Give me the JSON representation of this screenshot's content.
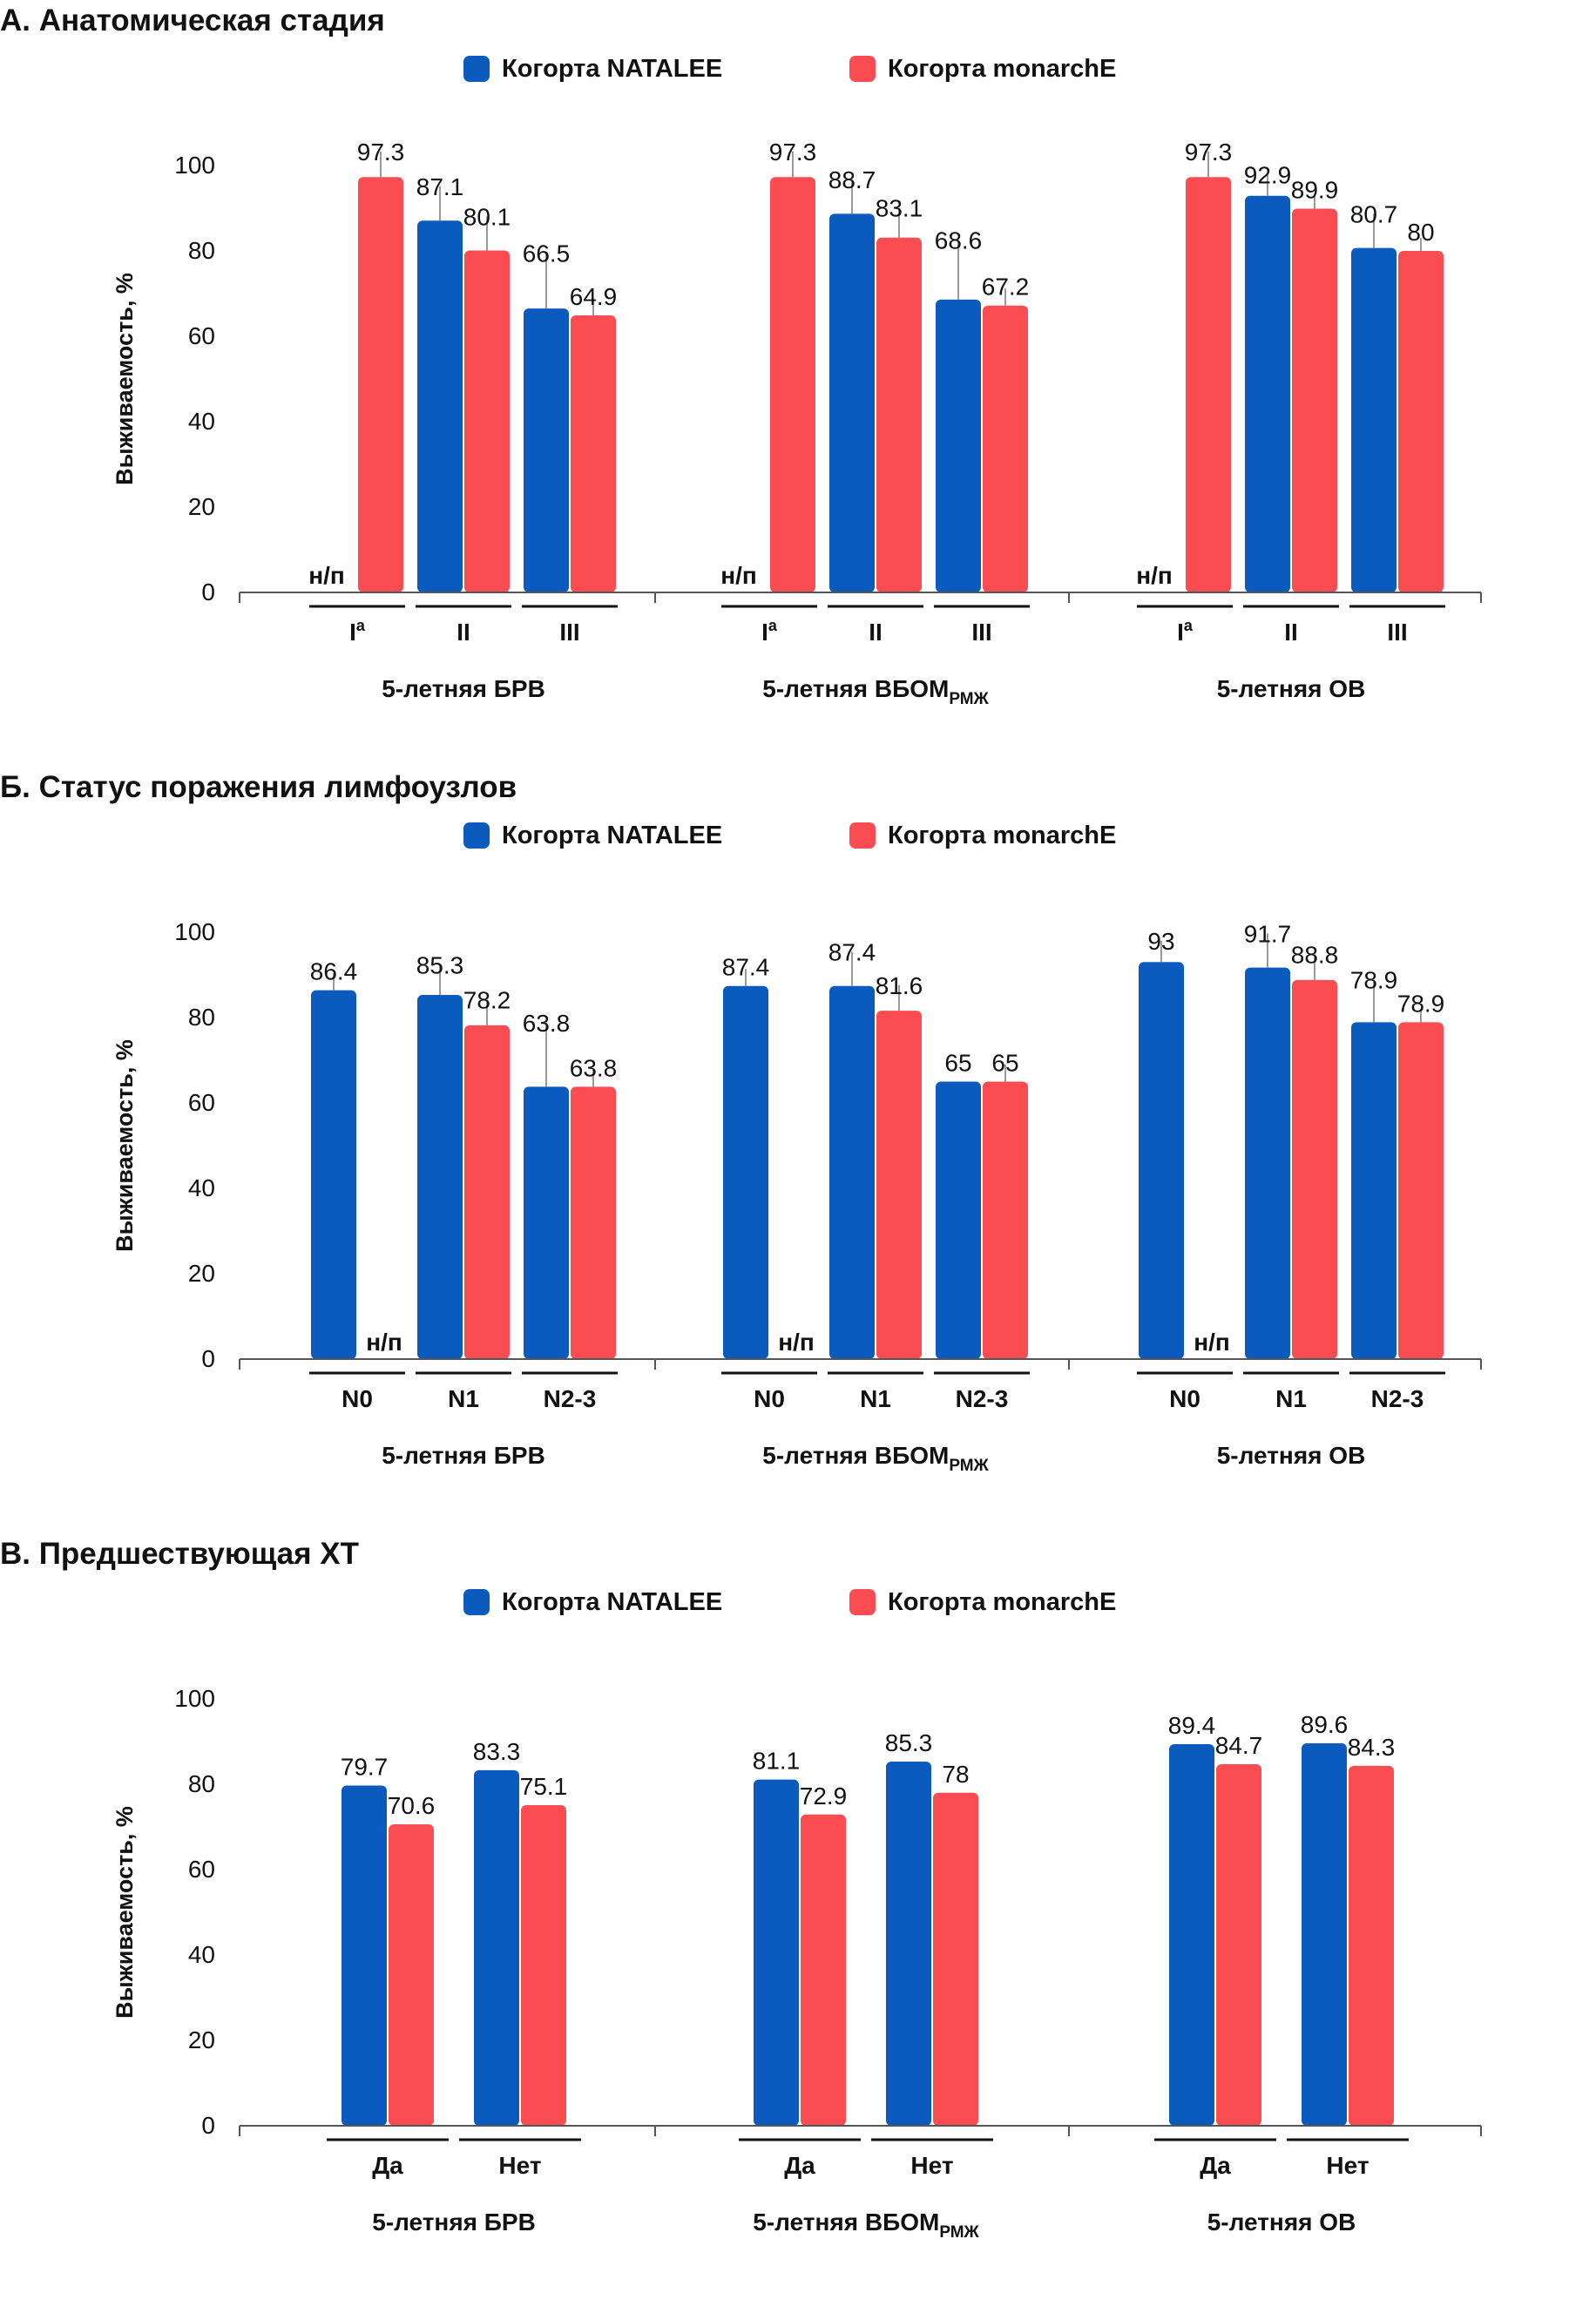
{
  "colors": {
    "natalee": "#0b5bbf",
    "monarche": "#fb4c52",
    "axis": "#555555",
    "errbar": "#9a9a9a"
  },
  "legend": {
    "natalee": "Когорта NATALEE",
    "monarche": "Когорта monarchE"
  },
  "na_label": "н/п",
  "chart_data": [
    {
      "type": "bar",
      "title": "А. Анатомическая стадия",
      "ylabel": "Выживаемость, %",
      "ylim": [
        0,
        100
      ],
      "yticks": [
        0,
        20,
        40,
        60,
        80,
        100
      ],
      "error_bars": true,
      "groups": [
        {
          "label": "5-летняя БРВ",
          "label_sub": "",
          "categories": [
            {
              "label": "I",
              "sup": "а",
              "natalee": null,
              "monarche": 97.3,
              "natalee_err": null,
              "monarche_err": 6
            },
            {
              "label": "II",
              "sup": "",
              "natalee": 87.1,
              "monarche": 80.1,
              "natalee_err": 8,
              "monarche_err": 8
            },
            {
              "label": "III",
              "sup": "",
              "natalee": 66.5,
              "monarche": 64.9,
              "natalee_err": 13,
              "monarche_err": 4
            }
          ]
        },
        {
          "label": "5-летняя ВБОМ",
          "label_sub": "РМЖ",
          "categories": [
            {
              "label": "I",
              "sup": "а",
              "natalee": null,
              "monarche": 97.3,
              "natalee_err": null,
              "monarche_err": 6
            },
            {
              "label": "II",
              "sup": "",
              "natalee": 88.7,
              "monarche": 83.1,
              "natalee_err": 8,
              "monarche_err": 7
            },
            {
              "label": "III",
              "sup": "",
              "natalee": 68.6,
              "monarche": 67.2,
              "natalee_err": 14,
              "monarche_err": 4
            }
          ]
        },
        {
          "label": "5-летняя ОВ",
          "label_sub": "",
          "categories": [
            {
              "label": "I",
              "sup": "а",
              "natalee": null,
              "monarche": 97.3,
              "natalee_err": null,
              "monarche_err": 6
            },
            {
              "label": "II",
              "sup": "",
              "natalee": 92.9,
              "monarche": 89.9,
              "natalee_err": 5,
              "monarche_err": 3
            },
            {
              "label": "III",
              "sup": "",
              "natalee": 80.7,
              "monarche": 80.0,
              "natalee_err": 8,
              "monarche_err": 3
            }
          ]
        }
      ]
    },
    {
      "type": "bar",
      "title": "Б. Статус поражения лимфоузлов",
      "ylabel": "Выживаемость, %",
      "ylim": [
        0,
        100
      ],
      "yticks": [
        0,
        20,
        40,
        60,
        80,
        100
      ],
      "error_bars": true,
      "groups": [
        {
          "label": "5-летняя БРВ",
          "label_sub": "",
          "categories": [
            {
              "label": "N0",
              "sup": "",
              "natalee": 86.4,
              "monarche": null,
              "natalee_err": 4,
              "monarche_err": null
            },
            {
              "label": "N1",
              "sup": "",
              "natalee": 85.3,
              "monarche": 78.2,
              "natalee_err": 7,
              "monarche_err": 6
            },
            {
              "label": "N2-3",
              "sup": "",
              "natalee": 63.8,
              "monarche": 63.8,
              "natalee_err": 15,
              "monarche_err": 4
            }
          ]
        },
        {
          "label": "5-летняя ВБОМ",
          "label_sub": "РМЖ",
          "categories": [
            {
              "label": "N0",
              "sup": "",
              "natalee": 87.4,
              "monarche": null,
              "natalee_err": 4,
              "monarche_err": null
            },
            {
              "label": "N1",
              "sup": "",
              "natalee": 87.4,
              "monarche": 81.6,
              "natalee_err": 8,
              "monarche_err": 6
            },
            {
              "label": "N2-3",
              "sup": "",
              "natalee": 65.0,
              "monarche": 65.0,
              "natalee_err": 0,
              "monarche_err": 4
            }
          ]
        },
        {
          "label": "5-летняя ОВ",
          "label_sub": "",
          "categories": [
            {
              "label": "N0",
              "sup": "",
              "natalee": 93.0,
              "monarche": null,
              "natalee_err": 5,
              "monarche_err": null
            },
            {
              "label": "N1",
              "sup": "",
              "natalee": 91.7,
              "monarche": 88.8,
              "natalee_err": 8,
              "monarche_err": 6
            },
            {
              "label": "N2-3",
              "sup": "",
              "natalee": 78.9,
              "monarche": 78.9,
              "natalee_err": 10,
              "monarche_err": 3
            }
          ]
        }
      ]
    },
    {
      "type": "bar",
      "title": "В. Предшествующая ХТ",
      "ylabel": "Выживаемость, %",
      "ylim": [
        0,
        100
      ],
      "yticks": [
        0,
        20,
        40,
        60,
        80,
        100
      ],
      "error_bars": false,
      "groups": [
        {
          "label": "5-летняя БРВ",
          "label_sub": "",
          "categories": [
            {
              "label": "Да",
              "sup": "",
              "natalee": 79.7,
              "monarche": 70.6
            },
            {
              "label": "Нет",
              "sup": "",
              "natalee": 83.3,
              "monarche": 75.1
            }
          ]
        },
        {
          "label": "5-летняя ВБОМ",
          "label_sub": "РМЖ",
          "categories": [
            {
              "label": "Да",
              "sup": "",
              "natalee": 81.1,
              "monarche": 72.9
            },
            {
              "label": "Нет",
              "sup": "",
              "natalee": 85.3,
              "monarche": 78.0
            }
          ]
        },
        {
          "label": "5-летняя ОВ",
          "label_sub": "",
          "categories": [
            {
              "label": "Да",
              "sup": "",
              "natalee": 89.4,
              "monarche": 84.7
            },
            {
              "label": "Нет",
              "sup": "",
              "natalee": 89.6,
              "monarche": 84.3
            }
          ]
        }
      ]
    }
  ]
}
